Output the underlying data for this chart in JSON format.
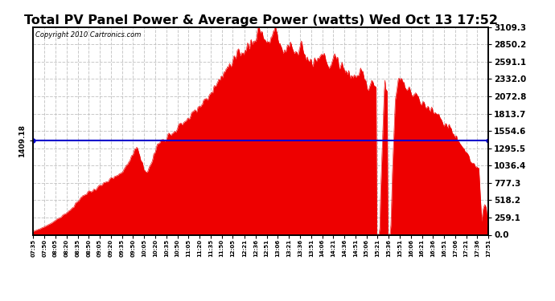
{
  "title": "Total PV Panel Power & Average Power (watts) Wed Oct 13 17:52",
  "copyright": "Copyright 2010 Cartronics.com",
  "average_value": 1409.18,
  "ymax": 3109.3,
  "yticks_right": [
    0.0,
    259.1,
    518.2,
    777.3,
    1036.4,
    1295.5,
    1554.6,
    1813.7,
    2072.8,
    2332.0,
    2591.1,
    2850.2,
    3109.3
  ],
  "bg_color": "#ffffff",
  "fill_color": "#ee0000",
  "avg_line_color": "#0000cc",
  "grid_color": "#bbbbbb",
  "x_tick_labels": [
    "07:35",
    "07:50",
    "08:05",
    "08:20",
    "08:35",
    "08:50",
    "09:05",
    "09:20",
    "09:35",
    "09:50",
    "10:05",
    "10:20",
    "10:35",
    "10:50",
    "11:05",
    "11:20",
    "11:35",
    "11:50",
    "12:05",
    "12:21",
    "12:36",
    "12:51",
    "13:06",
    "13:21",
    "13:36",
    "13:51",
    "14:06",
    "14:21",
    "14:36",
    "14:51",
    "15:06",
    "15:21",
    "15:36",
    "15:51",
    "16:06",
    "16:21",
    "16:36",
    "16:51",
    "17:06",
    "17:21",
    "17:36",
    "17:51"
  ],
  "curve_keypoints": [
    [
      455,
      50
    ],
    [
      470,
      120
    ],
    [
      480,
      180
    ],
    [
      490,
      250
    ],
    [
      500,
      330
    ],
    [
      510,
      420
    ],
    [
      515,
      500
    ],
    [
      520,
      560
    ],
    [
      525,
      610
    ],
    [
      530,
      640
    ],
    [
      535,
      660
    ],
    [
      540,
      700
    ],
    [
      545,
      730
    ],
    [
      550,
      760
    ],
    [
      555,
      790
    ],
    [
      560,
      820
    ],
    [
      565,
      860
    ],
    [
      570,
      900
    ],
    [
      575,
      920
    ],
    [
      578,
      960
    ],
    [
      580,
      1000
    ],
    [
      582,
      1050
    ],
    [
      585,
      1100
    ],
    [
      587,
      1130
    ],
    [
      589,
      1200
    ],
    [
      591,
      1260
    ],
    [
      593,
      1300
    ],
    [
      595,
      1320
    ],
    [
      597,
      1280
    ],
    [
      599,
      1200
    ],
    [
      601,
      1100
    ],
    [
      603,
      1050
    ],
    [
      605,
      1000
    ],
    [
      607,
      960
    ],
    [
      609,
      950
    ],
    [
      611,
      980
    ],
    [
      613,
      1020
    ],
    [
      615,
      1080
    ],
    [
      617,
      1150
    ],
    [
      619,
      1220
    ],
    [
      621,
      1280
    ],
    [
      623,
      1340
    ],
    [
      625,
      1380
    ],
    [
      627,
      1400
    ],
    [
      630,
      1430
    ],
    [
      635,
      1470
    ],
    [
      640,
      1510
    ],
    [
      645,
      1560
    ],
    [
      650,
      1600
    ],
    [
      655,
      1650
    ],
    [
      660,
      1700
    ],
    [
      665,
      1750
    ],
    [
      670,
      1800
    ],
    [
      675,
      1850
    ],
    [
      680,
      1900
    ],
    [
      685,
      1980
    ],
    [
      690,
      2050
    ],
    [
      695,
      2120
    ],
    [
      700,
      2200
    ],
    [
      705,
      2300
    ],
    [
      710,
      2380
    ],
    [
      715,
      2450
    ],
    [
      720,
      2500
    ],
    [
      725,
      2560
    ],
    [
      730,
      2620
    ],
    [
      735,
      2700
    ],
    [
      740,
      2750
    ],
    [
      745,
      2820
    ],
    [
      750,
      2880
    ],
    [
      755,
      2940
    ],
    [
      757,
      3000
    ],
    [
      759,
      3050
    ],
    [
      761,
      3090
    ],
    [
      763,
      3060
    ],
    [
      765,
      3020
    ],
    [
      767,
      2980
    ],
    [
      769,
      2940
    ],
    [
      771,
      2900
    ],
    [
      773,
      2860
    ],
    [
      775,
      2900
    ],
    [
      777,
      2960
    ],
    [
      779,
      3010
    ],
    [
      781,
      3060
    ],
    [
      783,
      3040
    ],
    [
      785,
      2980
    ],
    [
      787,
      2900
    ],
    [
      789,
      2840
    ],
    [
      791,
      2780
    ],
    [
      793,
      2730
    ],
    [
      795,
      2700
    ],
    [
      797,
      2720
    ],
    [
      799,
      2770
    ],
    [
      801,
      2820
    ],
    [
      803,
      2860
    ],
    [
      805,
      2840
    ],
    [
      807,
      2780
    ],
    [
      809,
      2730
    ],
    [
      811,
      2700
    ],
    [
      813,
      2740
    ],
    [
      815,
      2800
    ],
    [
      817,
      2850
    ],
    [
      819,
      2820
    ],
    [
      821,
      2760
    ],
    [
      823,
      2700
    ],
    [
      825,
      2660
    ],
    [
      827,
      2630
    ],
    [
      829,
      2600
    ],
    [
      831,
      2580
    ],
    [
      833,
      2560
    ],
    [
      835,
      2540
    ],
    [
      837,
      2560
    ],
    [
      839,
      2600
    ],
    [
      841,
      2650
    ],
    [
      843,
      2680
    ],
    [
      845,
      2700
    ],
    [
      847,
      2680
    ],
    [
      849,
      2640
    ],
    [
      851,
      2600
    ],
    [
      853,
      2560
    ],
    [
      855,
      2540
    ],
    [
      857,
      2560
    ],
    [
      859,
      2600
    ],
    [
      861,
      2640
    ],
    [
      863,
      2660
    ],
    [
      865,
      2640
    ],
    [
      867,
      2600
    ],
    [
      869,
      2560
    ],
    [
      871,
      2540
    ],
    [
      873,
      2520
    ],
    [
      875,
      2500
    ],
    [
      877,
      2480
    ],
    [
      879,
      2460
    ],
    [
      881,
      2440
    ],
    [
      883,
      2420
    ],
    [
      885,
      2400
    ],
    [
      887,
      2380
    ],
    [
      889,
      2360
    ],
    [
      891,
      2340
    ],
    [
      893,
      2340
    ],
    [
      895,
      2380
    ],
    [
      897,
      2420
    ],
    [
      899,
      2460
    ],
    [
      901,
      2440
    ],
    [
      903,
      2380
    ],
    [
      905,
      2300
    ],
    [
      907,
      2220
    ],
    [
      909,
      2200
    ],
    [
      911,
      2260
    ],
    [
      913,
      2320
    ],
    [
      915,
      2300
    ],
    [
      917,
      2240
    ],
    [
      919,
      2180
    ],
    [
      921,
      100
    ],
    [
      922,
      50
    ],
    [
      923,
      20
    ],
    [
      924,
      100
    ],
    [
      925,
      600
    ],
    [
      926,
      900
    ],
    [
      927,
      1200
    ],
    [
      928,
      1500
    ],
    [
      929,
      1800
    ],
    [
      930,
      2100
    ],
    [
      931,
      2300
    ],
    [
      932,
      2200
    ],
    [
      934,
      2100
    ],
    [
      936,
      100
    ],
    [
      937,
      50
    ],
    [
      938,
      20
    ],
    [
      939,
      150
    ],
    [
      940,
      500
    ],
    [
      941,
      900
    ],
    [
      942,
      1200
    ],
    [
      943,
      1500
    ],
    [
      944,
      1800
    ],
    [
      945,
      2050
    ],
    [
      947,
      2200
    ],
    [
      950,
      2300
    ],
    [
      955,
      2250
    ],
    [
      960,
      2200
    ],
    [
      965,
      2150
    ],
    [
      970,
      2100
    ],
    [
      975,
      2050
    ],
    [
      980,
      2000
    ],
    [
      985,
      1950
    ],
    [
      990,
      1900
    ],
    [
      995,
      1850
    ],
    [
      1000,
      1800
    ],
    [
      1005,
      1750
    ],
    [
      1010,
      1700
    ],
    [
      1015,
      1640
    ],
    [
      1020,
      1580
    ],
    [
      1025,
      1500
    ],
    [
      1030,
      1420
    ],
    [
      1035,
      1340
    ],
    [
      1040,
      1250
    ],
    [
      1045,
      1160
    ],
    [
      1050,
      1080
    ],
    [
      1055,
      1000
    ],
    [
      1058,
      960
    ],
    [
      1061,
      400
    ],
    [
      1062,
      200
    ],
    [
      1063,
      300
    ],
    [
      1064,
      380
    ],
    [
      1065,
      420
    ],
    [
      1066,
      450
    ],
    [
      1067,
      430
    ],
    [
      1068,
      400
    ],
    [
      1069,
      300
    ],
    [
      1070,
      200
    ],
    [
      1071,
      100
    ]
  ]
}
